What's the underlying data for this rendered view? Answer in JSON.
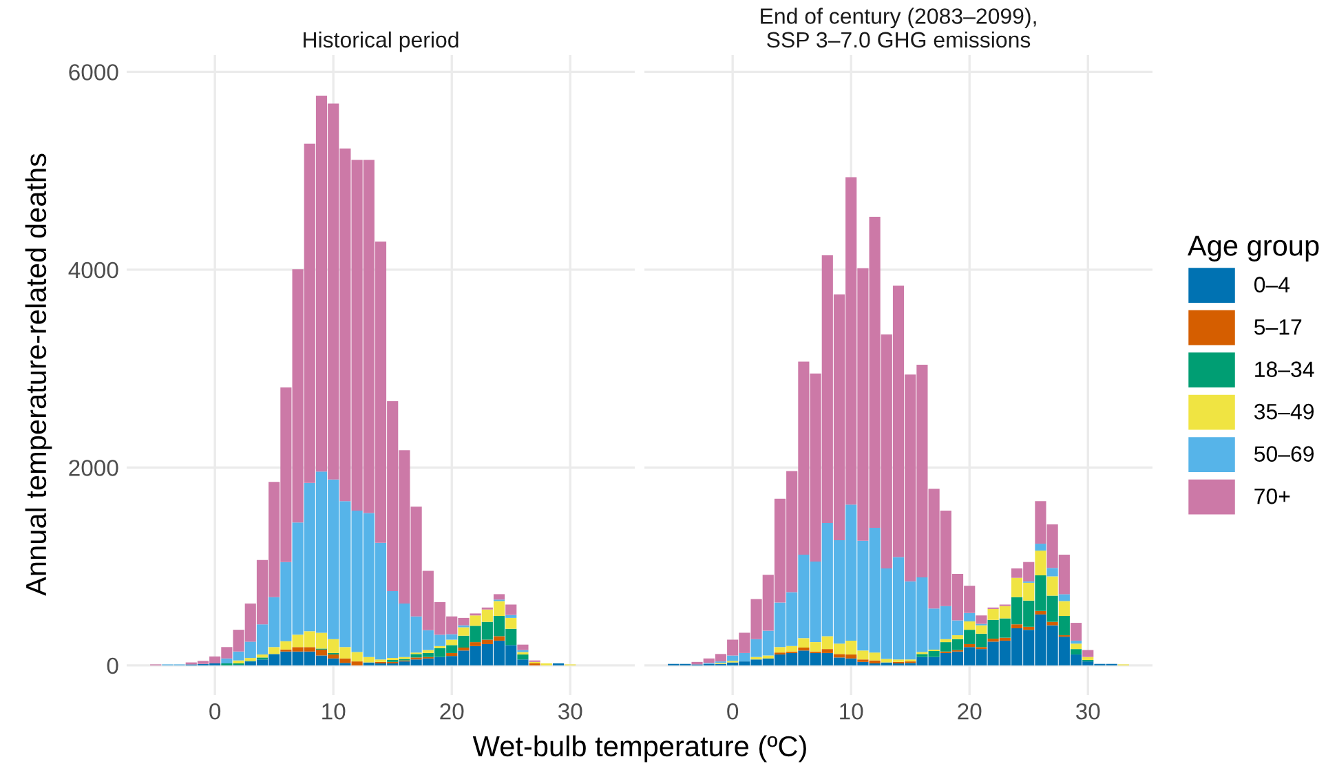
{
  "chart_data": [
    {
      "type": "bar",
      "title": "Historical period",
      "xlabel": "Wet-bulb temperature (ºC)",
      "ylabel": "Annual temperature-related deaths",
      "stacked": true,
      "grid": true,
      "x": [
        -5,
        -4,
        -3,
        -2,
        -1,
        0,
        1,
        2,
        3,
        4,
        5,
        6,
        7,
        8,
        9,
        10,
        11,
        12,
        13,
        14,
        15,
        16,
        17,
        18,
        19,
        20,
        21,
        22,
        23,
        24,
        25,
        26,
        27,
        28,
        29,
        30
      ],
      "xlim": [
        -7.45,
        35.45
      ],
      "ylim": [
        -300,
        6170
      ],
      "xticks": [
        0,
        10,
        20,
        30
      ],
      "yticks": [
        0,
        2000,
        4000,
        6000
      ],
      "series": [
        {
          "color": "#0072b2",
          "values": [
            0,
            0,
            0,
            10,
            15,
            20,
            0,
            5,
            40,
            60,
            115,
            140,
            140,
            140,
            100,
            70,
            25,
            0,
            30,
            20,
            20,
            40,
            60,
            70,
            85,
            95,
            150,
            195,
            215,
            250,
            205,
            60,
            0,
            0,
            20,
            0
          ]
        },
        {
          "color": "#d55e00",
          "values": [
            0,
            0,
            0,
            0,
            0,
            0,
            0,
            0,
            0,
            0,
            0,
            20,
            45,
            45,
            60,
            40,
            45,
            40,
            0,
            15,
            15,
            10,
            20,
            15,
            0,
            30,
            30,
            40,
            45,
            45,
            0,
            0,
            20,
            0,
            0,
            0
          ]
        },
        {
          "color": "#009e73",
          "values": [
            0,
            0,
            0,
            0,
            0,
            0,
            20,
            15,
            5,
            20,
            0,
            0,
            0,
            0,
            10,
            15,
            0,
            0,
            0,
            0,
            20,
            15,
            35,
            40,
            90,
            80,
            120,
            165,
            180,
            205,
            165,
            50,
            0,
            0,
            0,
            0
          ]
        },
        {
          "color": "#f0e442",
          "values": [
            0,
            0,
            0,
            0,
            0,
            0,
            0,
            30,
            30,
            30,
            70,
            85,
            125,
            160,
            160,
            140,
            115,
            95,
            55,
            25,
            20,
            20,
            15,
            30,
            20,
            55,
            85,
            105,
            125,
            150,
            110,
            25,
            15,
            20,
            0,
            10
          ]
        },
        {
          "color": "#56b4e9",
          "values": [
            0,
            10,
            10,
            0,
            0,
            0,
            50,
            90,
            165,
            305,
            505,
            800,
            1135,
            1500,
            1630,
            1615,
            1475,
            1430,
            1455,
            1180,
            675,
            540,
            365,
            200,
            115,
            55,
            20,
            0,
            0,
            15,
            30,
            20,
            0,
            0,
            0,
            0
          ]
        },
        {
          "color": "#cc79a7",
          "values": [
            10,
            0,
            0,
            20,
            30,
            70,
            115,
            220,
            385,
            650,
            1165,
            1765,
            2560,
            3430,
            3800,
            3800,
            3565,
            3545,
            3570,
            3045,
            1920,
            1550,
            1110,
            600,
            330,
            180,
            75,
            20,
            20,
            55,
            105,
            55,
            15,
            0,
            0,
            0
          ]
        }
      ]
    },
    {
      "type": "bar",
      "title": "End of century (2083–2099),\nSSP 3–7.0 GHG emissions",
      "stacked": true,
      "grid": true,
      "legend": "right",
      "legend_title": "Age group",
      "tick_labels": "x",
      "x": [
        -5,
        -4,
        -3,
        -2,
        -1,
        0,
        1,
        2,
        3,
        4,
        5,
        6,
        7,
        8,
        9,
        10,
        11,
        12,
        13,
        14,
        15,
        16,
        17,
        18,
        19,
        20,
        21,
        22,
        23,
        24,
        25,
        26,
        27,
        28,
        29,
        30,
        31,
        32,
        33
      ],
      "xlim": [
        -7.45,
        35.45
      ],
      "ylim": [
        -300,
        6170
      ],
      "xticks": [
        0,
        10,
        20,
        30
      ],
      "yticks": [
        0,
        2000,
        4000,
        6000
      ],
      "series": [
        {
          "name": "0–4",
          "color": "#0072b2",
          "values": [
            15,
            15,
            10,
            15,
            15,
            30,
            40,
            60,
            70,
            110,
            125,
            150,
            125,
            125,
            80,
            70,
            35,
            20,
            30,
            20,
            25,
            85,
            85,
            125,
            140,
            185,
            165,
            240,
            250,
            375,
            360,
            515,
            405,
            290,
            110,
            40,
            15,
            15,
            0
          ]
        },
        {
          "name": "5–17",
          "color": "#d55e00",
          "values": [
            0,
            0,
            0,
            0,
            0,
            0,
            0,
            0,
            0,
            20,
            15,
            30,
            15,
            40,
            35,
            40,
            25,
            30,
            0,
            15,
            15,
            0,
            0,
            15,
            15,
            30,
            20,
            30,
            30,
            40,
            30,
            35,
            35,
            15,
            0,
            0,
            0,
            0,
            0
          ]
        },
        {
          "name": "18–34",
          "color": "#009e73",
          "values": [
            0,
            0,
            0,
            0,
            0,
            0,
            0,
            0,
            0,
            0,
            0,
            0,
            0,
            0,
            0,
            0,
            0,
            0,
            0,
            0,
            0,
            30,
            60,
            95,
            110,
            145,
            135,
            190,
            195,
            275,
            265,
            360,
            265,
            195,
            55,
            15,
            0,
            0,
            0
          ]
        },
        {
          "name": "35–49",
          "color": "#f0e442",
          "values": [
            0,
            0,
            0,
            0,
            10,
            15,
            0,
            25,
            30,
            55,
            55,
            95,
            95,
            130,
            105,
            140,
            90,
            80,
            35,
            25,
            20,
            20,
            15,
            30,
            40,
            85,
            85,
            110,
            125,
            195,
            180,
            250,
            195,
            150,
            55,
            30,
            0,
            0,
            10
          ]
        },
        {
          "name": "50–69",
          "color": "#56b4e9",
          "values": [
            0,
            0,
            0,
            10,
            15,
            55,
            85,
            180,
            250,
            450,
            545,
            845,
            815,
            1145,
            1045,
            1375,
            1110,
            1260,
            915,
            1035,
            790,
            755,
            415,
            335,
            150,
            85,
            15,
            0,
            0,
            0,
            15,
            70,
            85,
            70,
            30,
            0,
            0,
            0,
            0
          ]
        },
        {
          "name": "70+",
          "color": "#cc79a7",
          "values": [
            0,
            0,
            25,
            45,
            75,
            160,
            205,
            405,
            565,
            1050,
            1225,
            1950,
            1900,
            2705,
            2485,
            3310,
            2755,
            3145,
            2365,
            2745,
            2090,
            2150,
            1210,
            965,
            470,
            275,
            85,
            15,
            15,
            95,
            195,
            430,
            440,
            400,
            180,
            70,
            0,
            0,
            0
          ]
        }
      ]
    }
  ]
}
